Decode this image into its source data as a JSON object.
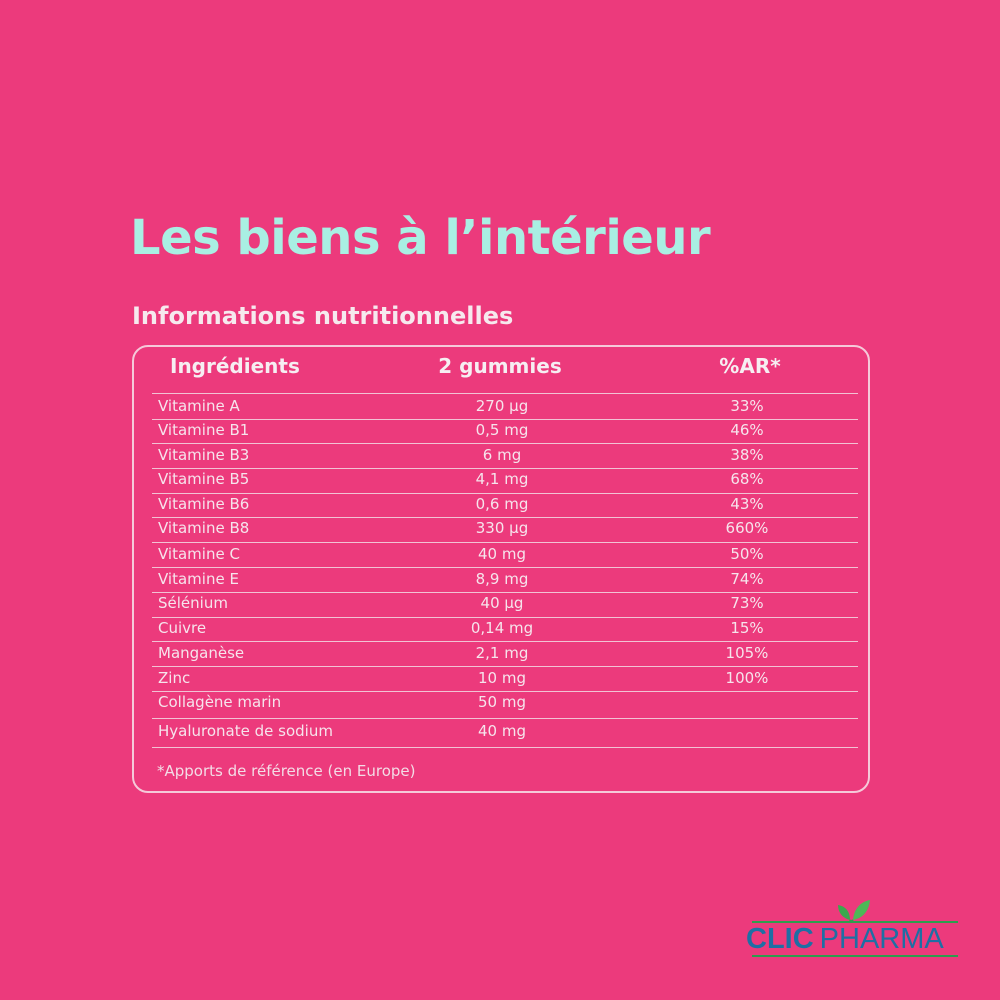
{
  "heading": "Les biens à l’intérieur",
  "subheading": "Informations nutritionnelles",
  "table": {
    "columns": [
      "Ingrédients",
      "2 gummies",
      "%AR*"
    ],
    "rows": [
      [
        "Vitamine A",
        "270 µg",
        "33%"
      ],
      [
        "Vitamine B1",
        "0,5 mg",
        "46%"
      ],
      [
        "Vitamine B3",
        "6 mg",
        "38%"
      ],
      [
        "Vitamine B5",
        "4,1 mg",
        "68%"
      ],
      [
        "Vitamine B6",
        "0,6 mg",
        "43%"
      ],
      [
        "Vitamine B8",
        "330 µg",
        "660%"
      ],
      [
        "Vitamine C",
        "40 mg",
        "50%"
      ],
      [
        "Vitamine E",
        "8,9 mg",
        "74%"
      ],
      [
        "Sélénium",
        "40 µg",
        "73%"
      ],
      [
        "Cuivre",
        "0,14 mg",
        "15%"
      ],
      [
        "Manganèse",
        "2,1 mg",
        "105%"
      ],
      [
        "Zinc",
        "10 mg",
        "100%"
      ],
      [
        "Collagène marin",
        "50 mg",
        ""
      ],
      [
        "Hyaluronate de sodium",
        "40 mg",
        ""
      ]
    ],
    "footnote": "*Apports de référence (en Europe)"
  },
  "logo": {
    "part1": "CLIC",
    "part2": "PHARMA"
  },
  "colors": {
    "background": "#EC3A7C",
    "heading": "#A9EFE3",
    "logo_blue": "#1E6FA4",
    "logo_green": "#2E9D4E"
  }
}
